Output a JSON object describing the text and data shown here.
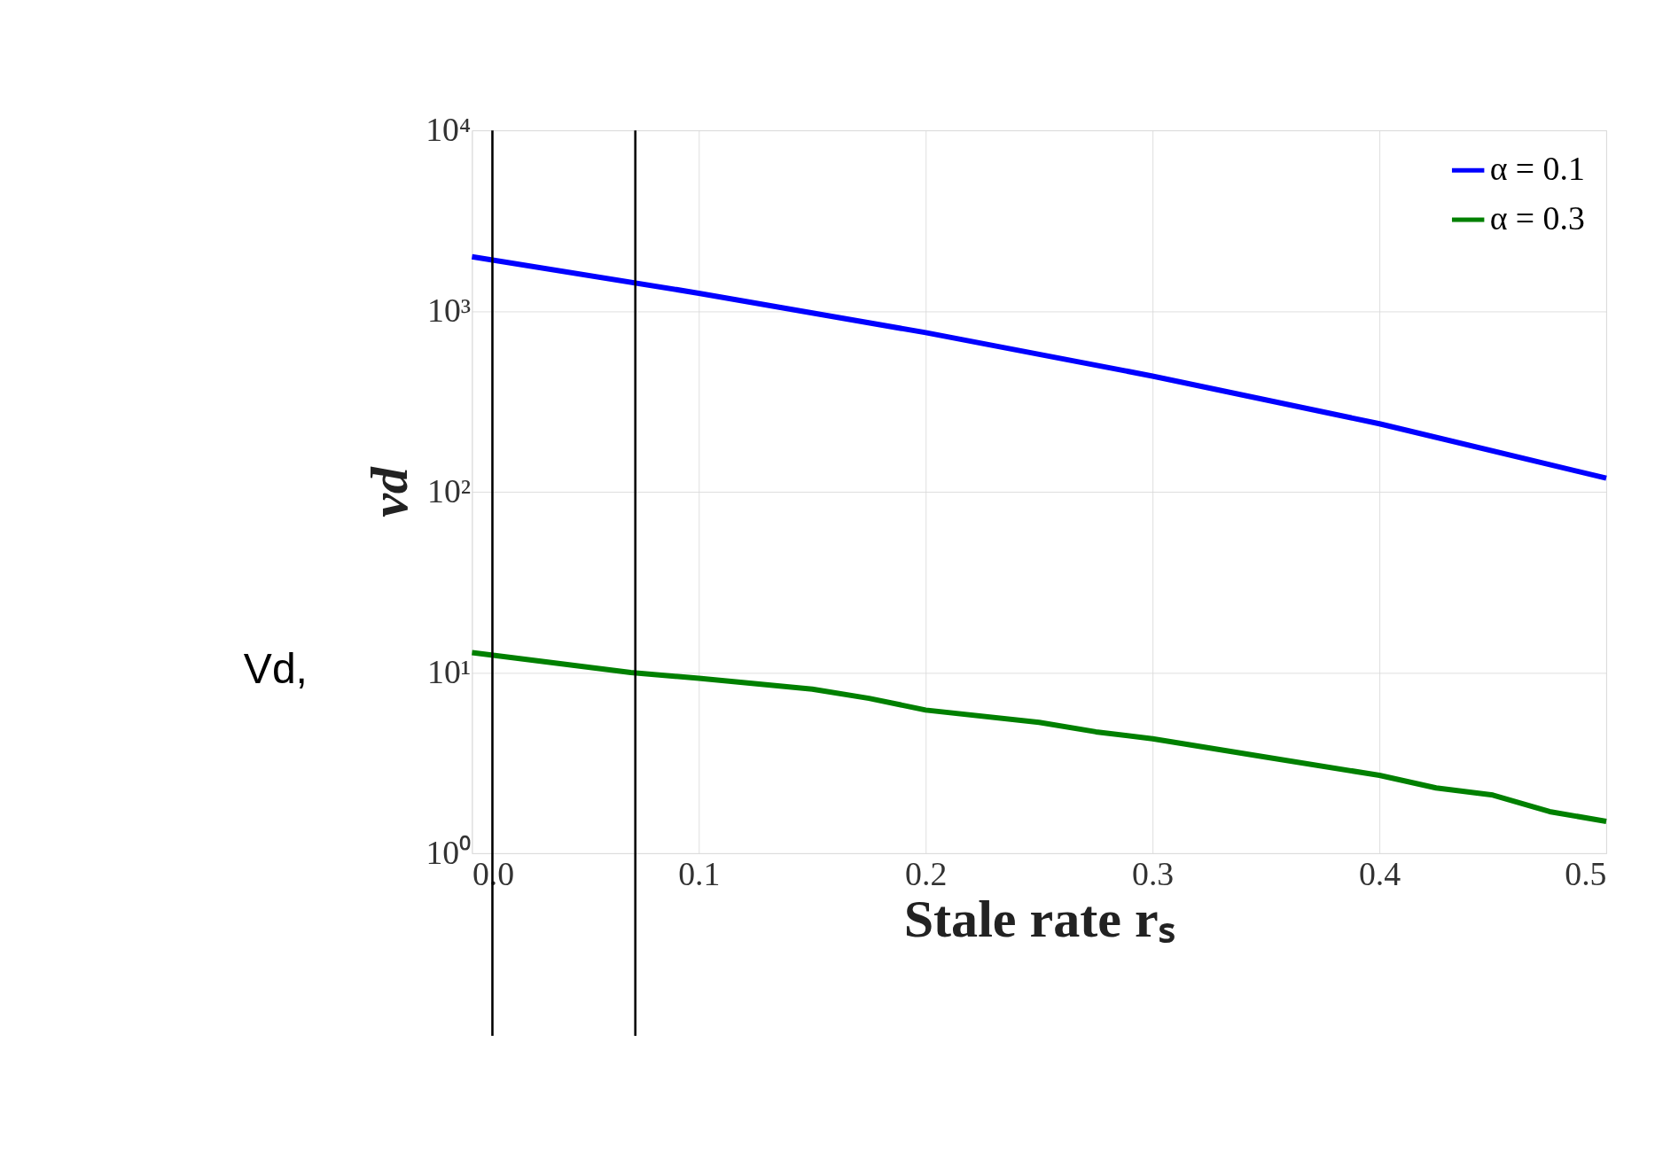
{
  "chart_data": {
    "type": "line",
    "xlabel": "Stale rate rₛ",
    "ylabel": "vd",
    "x": [
      0,
      0.1,
      0.2,
      0.3,
      0.4,
      0.5
    ],
    "series": [
      {
        "name": "α = 0.1",
        "color": "#0000ff",
        "values": [
          2000,
          1256,
          760,
          437,
          238,
          119
        ]
      },
      {
        "name": "α = 0.3",
        "color": "#008000",
        "x": [
          0,
          0.07,
          0.1,
          0.15,
          0.175,
          0.2,
          0.25,
          0.275,
          0.3,
          0.35,
          0.4,
          0.425,
          0.45,
          0.475,
          0.5
        ],
        "values": [
          12.9,
          10,
          9.3,
          8.1,
          7.2,
          6.2,
          5.3,
          4.7,
          4.3,
          3.4,
          2.7,
          2.3,
          2.1,
          1.7,
          1.5
        ]
      }
    ],
    "log": "y",
    "xlim": [
      0,
      0.5
    ],
    "ylim": [
      1,
      10000
    ],
    "xticks": [
      {
        "value": 0,
        "label": "0.0"
      },
      0.1,
      0.2,
      0.3,
      0.4,
      0.5
    ],
    "yticks": [
      {
        "value": 1,
        "label": "10⁰"
      },
      {
        "value": 10,
        "label": "10¹"
      },
      {
        "value": 100,
        "label": "10²"
      },
      {
        "value": 1000,
        "label": "10³"
      },
      {
        "value": 10000,
        "label": "10⁴"
      }
    ],
    "ref_lines": [
      {
        "axis": "x",
        "value": 0.009,
        "color": "#000000"
      },
      {
        "axis": "x",
        "value": 0.072,
        "color": "#000000"
      }
    ],
    "annotations": [
      "Vd,"
    ],
    "grid": true,
    "legend": "top right",
    "line_style": "solid",
    "marker": "none"
  }
}
